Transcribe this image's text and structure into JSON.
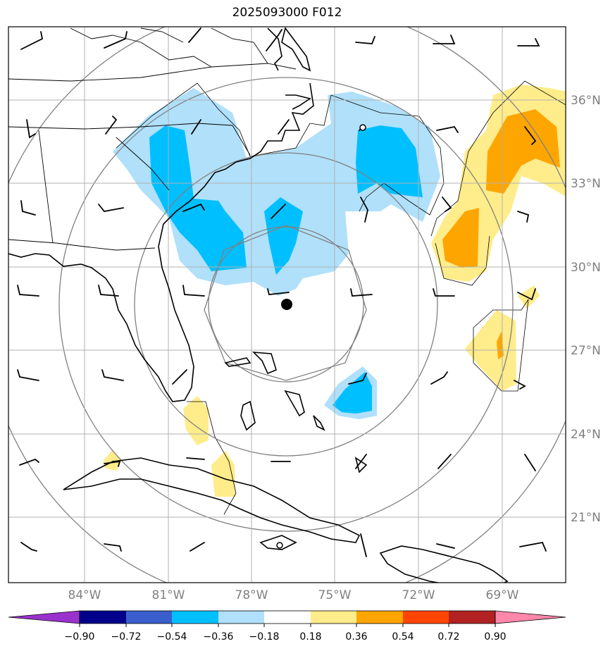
{
  "title": "2025093000 F012",
  "latitude_labels": [
    "36°N",
    "33°N",
    "30°N",
    "27°N",
    "24°N",
    "21°N"
  ],
  "longitude_labels": [
    "84°W",
    "81°W",
    "78°W",
    "75°W",
    "72°W",
    "69°W"
  ],
  "colorbar": {
    "ticks": [
      "−0.90",
      "−0.72",
      "−0.54",
      "−0.36",
      "−0.18",
      "0.18",
      "0.36",
      "0.54",
      "0.72",
      "0.90"
    ],
    "colors": [
      "#9932cc",
      "#00008b",
      "#3a5fcd",
      "#00bfff",
      "#b0e0fa",
      "#ffffff",
      "#ffec8b",
      "#ffa500",
      "#ff4500",
      "#b22222",
      "#ff88aa"
    ]
  },
  "colors": {
    "light_blue": "#b0e0fa",
    "mid_blue": "#00bfff",
    "light_yellow": "#ffec8b",
    "orange": "#ffa500",
    "grid": "#b0b0b0",
    "range_rings": "#808080"
  },
  "center_marker": "storm-center-dot"
}
